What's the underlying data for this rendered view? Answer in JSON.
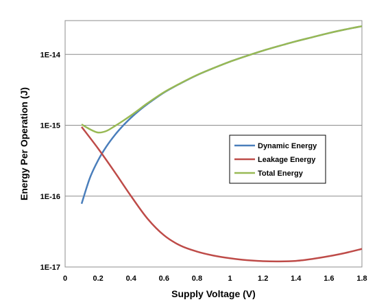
{
  "chart_data": {
    "type": "line",
    "title": "",
    "xlabel": "Supply Voltage (V)",
    "ylabel": "Energy Per Operation (J)",
    "xlim": [
      0,
      1.8
    ],
    "ylim": [
      1e-17,
      3e-14
    ],
    "y_scale": "log",
    "grid": "horizontal",
    "legend_position": "center-right",
    "x_ticks": [
      0,
      0.2,
      0.4,
      0.6,
      0.8,
      1,
      1.2,
      1.4,
      1.6,
      1.8
    ],
    "x_tick_labels": [
      "0",
      "0.2",
      "0.4",
      "0.6",
      "0.8",
      "1",
      "1.2",
      "1.4",
      "1.6",
      "1.8"
    ],
    "y_ticks": [
      1e-17,
      1e-16,
      1e-15,
      1e-14
    ],
    "y_tick_labels": [
      "1E-17",
      "1E-16",
      "1E-15",
      "1E-14"
    ],
    "series": [
      {
        "name": "Dynamic Energy",
        "color": "#4a7ebb",
        "x": [
          0.1,
          0.15,
          0.2,
          0.25,
          0.3,
          0.35,
          0.4,
          0.45,
          0.5,
          0.6,
          0.7,
          0.8,
          0.9,
          1.0,
          1.1,
          1.2,
          1.3,
          1.4,
          1.5,
          1.6,
          1.7,
          1.8
        ],
        "values": [
          7.8e-17,
          1.8e-16,
          3.2e-16,
          5e-16,
          7.2e-16,
          9.8e-16,
          1.28e-15,
          1.62e-15,
          2e-15,
          2.9e-15,
          3.9e-15,
          5.1e-15,
          6.4e-15,
          7.9e-15,
          9.5e-15,
          1.13e-14,
          1.32e-14,
          1.53e-14,
          1.75e-14,
          2e-14,
          2.25e-14,
          2.5e-14
        ]
      },
      {
        "name": "Leakage Energy",
        "color": "#be4b48",
        "x": [
          0.1,
          0.2,
          0.3,
          0.4,
          0.5,
          0.6,
          0.7,
          0.8,
          0.9,
          1.0,
          1.1,
          1.2,
          1.3,
          1.4,
          1.5,
          1.6,
          1.7,
          1.8
        ],
        "values": [
          9.5e-16,
          4.7e-16,
          2.2e-16,
          1e-16,
          4.8e-17,
          2.8e-17,
          2e-17,
          1.65e-17,
          1.45e-17,
          1.33e-17,
          1.25e-17,
          1.21e-17,
          1.2e-17,
          1.22e-17,
          1.3e-17,
          1.42e-17,
          1.58e-17,
          1.8e-17
        ]
      },
      {
        "name": "Total Energy",
        "color": "#98b954",
        "x": [
          0.1,
          0.15,
          0.2,
          0.25,
          0.3,
          0.35,
          0.4,
          0.45,
          0.5,
          0.6,
          0.7,
          0.8,
          0.9,
          1.0,
          1.1,
          1.2,
          1.3,
          1.4,
          1.5,
          1.6,
          1.7,
          1.8
        ],
        "values": [
          1.03e-15,
          8.8e-16,
          7.9e-16,
          8.3e-16,
          9.7e-16,
          1.15e-15,
          1.38e-15,
          1.68e-15,
          2.05e-15,
          2.93e-15,
          3.92e-15,
          5.12e-15,
          6.41e-15,
          7.91e-15,
          9.51e-15,
          1.13e-14,
          1.32e-14,
          1.53e-14,
          1.75e-14,
          2e-14,
          2.25e-14,
          2.5e-14
        ]
      }
    ]
  }
}
